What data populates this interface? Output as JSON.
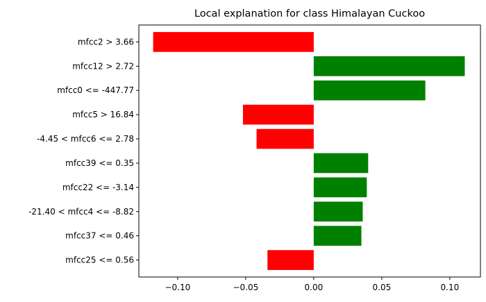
{
  "chart_data": {
    "type": "bar",
    "orientation": "horizontal",
    "title": "Local explanation for class Himalayan Cuckoo",
    "xlabel": "",
    "ylabel": "",
    "xlim": [
      -0.1285,
      0.1225
    ],
    "grid": false,
    "categories": [
      "mfcc2 > 3.66",
      "mfcc12 > 2.72",
      "mfcc0 <= -447.77",
      "mfcc5 > 16.84",
      "-4.45 < mfcc6 <= 2.78",
      "mfcc39 <= 0.35",
      "mfcc22 <= -3.14",
      "-21.40 < mfcc4 <= -8.82",
      "mfcc37 <= 0.46",
      "mfcc25 <= 0.56"
    ],
    "values": [
      -0.118,
      0.111,
      0.082,
      -0.052,
      -0.042,
      0.04,
      0.039,
      0.036,
      0.035,
      -0.034
    ],
    "xticks": [
      -0.1,
      -0.05,
      0.0,
      0.05,
      0.1
    ],
    "xtick_labels": [
      "−0.10",
      "−0.05",
      "0.00",
      "0.05",
      "0.10"
    ],
    "colors": {
      "positive": "#008000",
      "negative": "#ff0000"
    }
  }
}
